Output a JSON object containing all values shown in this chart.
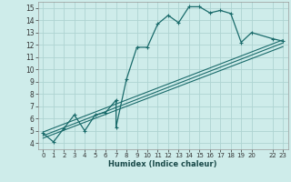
{
  "xlabel": "Humidex (Indice chaleur)",
  "bg_color": "#ceecea",
  "grid_color": "#aed4d2",
  "line_color": "#1a6b6b",
  "xlim": [
    -0.5,
    23.5
  ],
  "ylim": [
    3.5,
    15.5
  ],
  "xtick_vals": [
    0,
    1,
    2,
    3,
    4,
    5,
    6,
    7,
    8,
    9,
    10,
    11,
    12,
    13,
    14,
    15,
    16,
    17,
    18,
    19,
    20,
    22,
    23
  ],
  "xtick_labels": [
    "0",
    "1",
    "2",
    "3",
    "4",
    "5",
    "6",
    "7",
    "8",
    "9",
    "10",
    "11",
    "12",
    "13",
    "14",
    "15",
    "16",
    "17",
    "18",
    "19",
    "20",
    "22",
    "23"
  ],
  "yticks": [
    4,
    5,
    6,
    7,
    8,
    9,
    10,
    11,
    12,
    13,
    14,
    15
  ],
  "main_x": [
    0,
    1,
    2,
    3,
    4,
    5,
    6,
    7,
    7,
    8,
    9,
    10,
    11,
    12,
    13,
    14,
    15,
    16,
    17,
    18,
    19,
    20,
    22,
    23
  ],
  "main_y": [
    4.8,
    4.1,
    5.2,
    6.3,
    5.0,
    6.3,
    6.5,
    7.5,
    5.3,
    9.2,
    11.8,
    11.8,
    13.7,
    14.4,
    13.8,
    15.1,
    15.1,
    14.6,
    14.8,
    14.55,
    12.2,
    13.0,
    12.5,
    12.3
  ],
  "line1_x": [
    0,
    23
  ],
  "line1_y": [
    4.6,
    12.15
  ],
  "line2_x": [
    0,
    23
  ],
  "line2_y": [
    4.4,
    11.85
  ],
  "line3_x": [
    0,
    23
  ],
  "line3_y": [
    4.9,
    12.4
  ]
}
